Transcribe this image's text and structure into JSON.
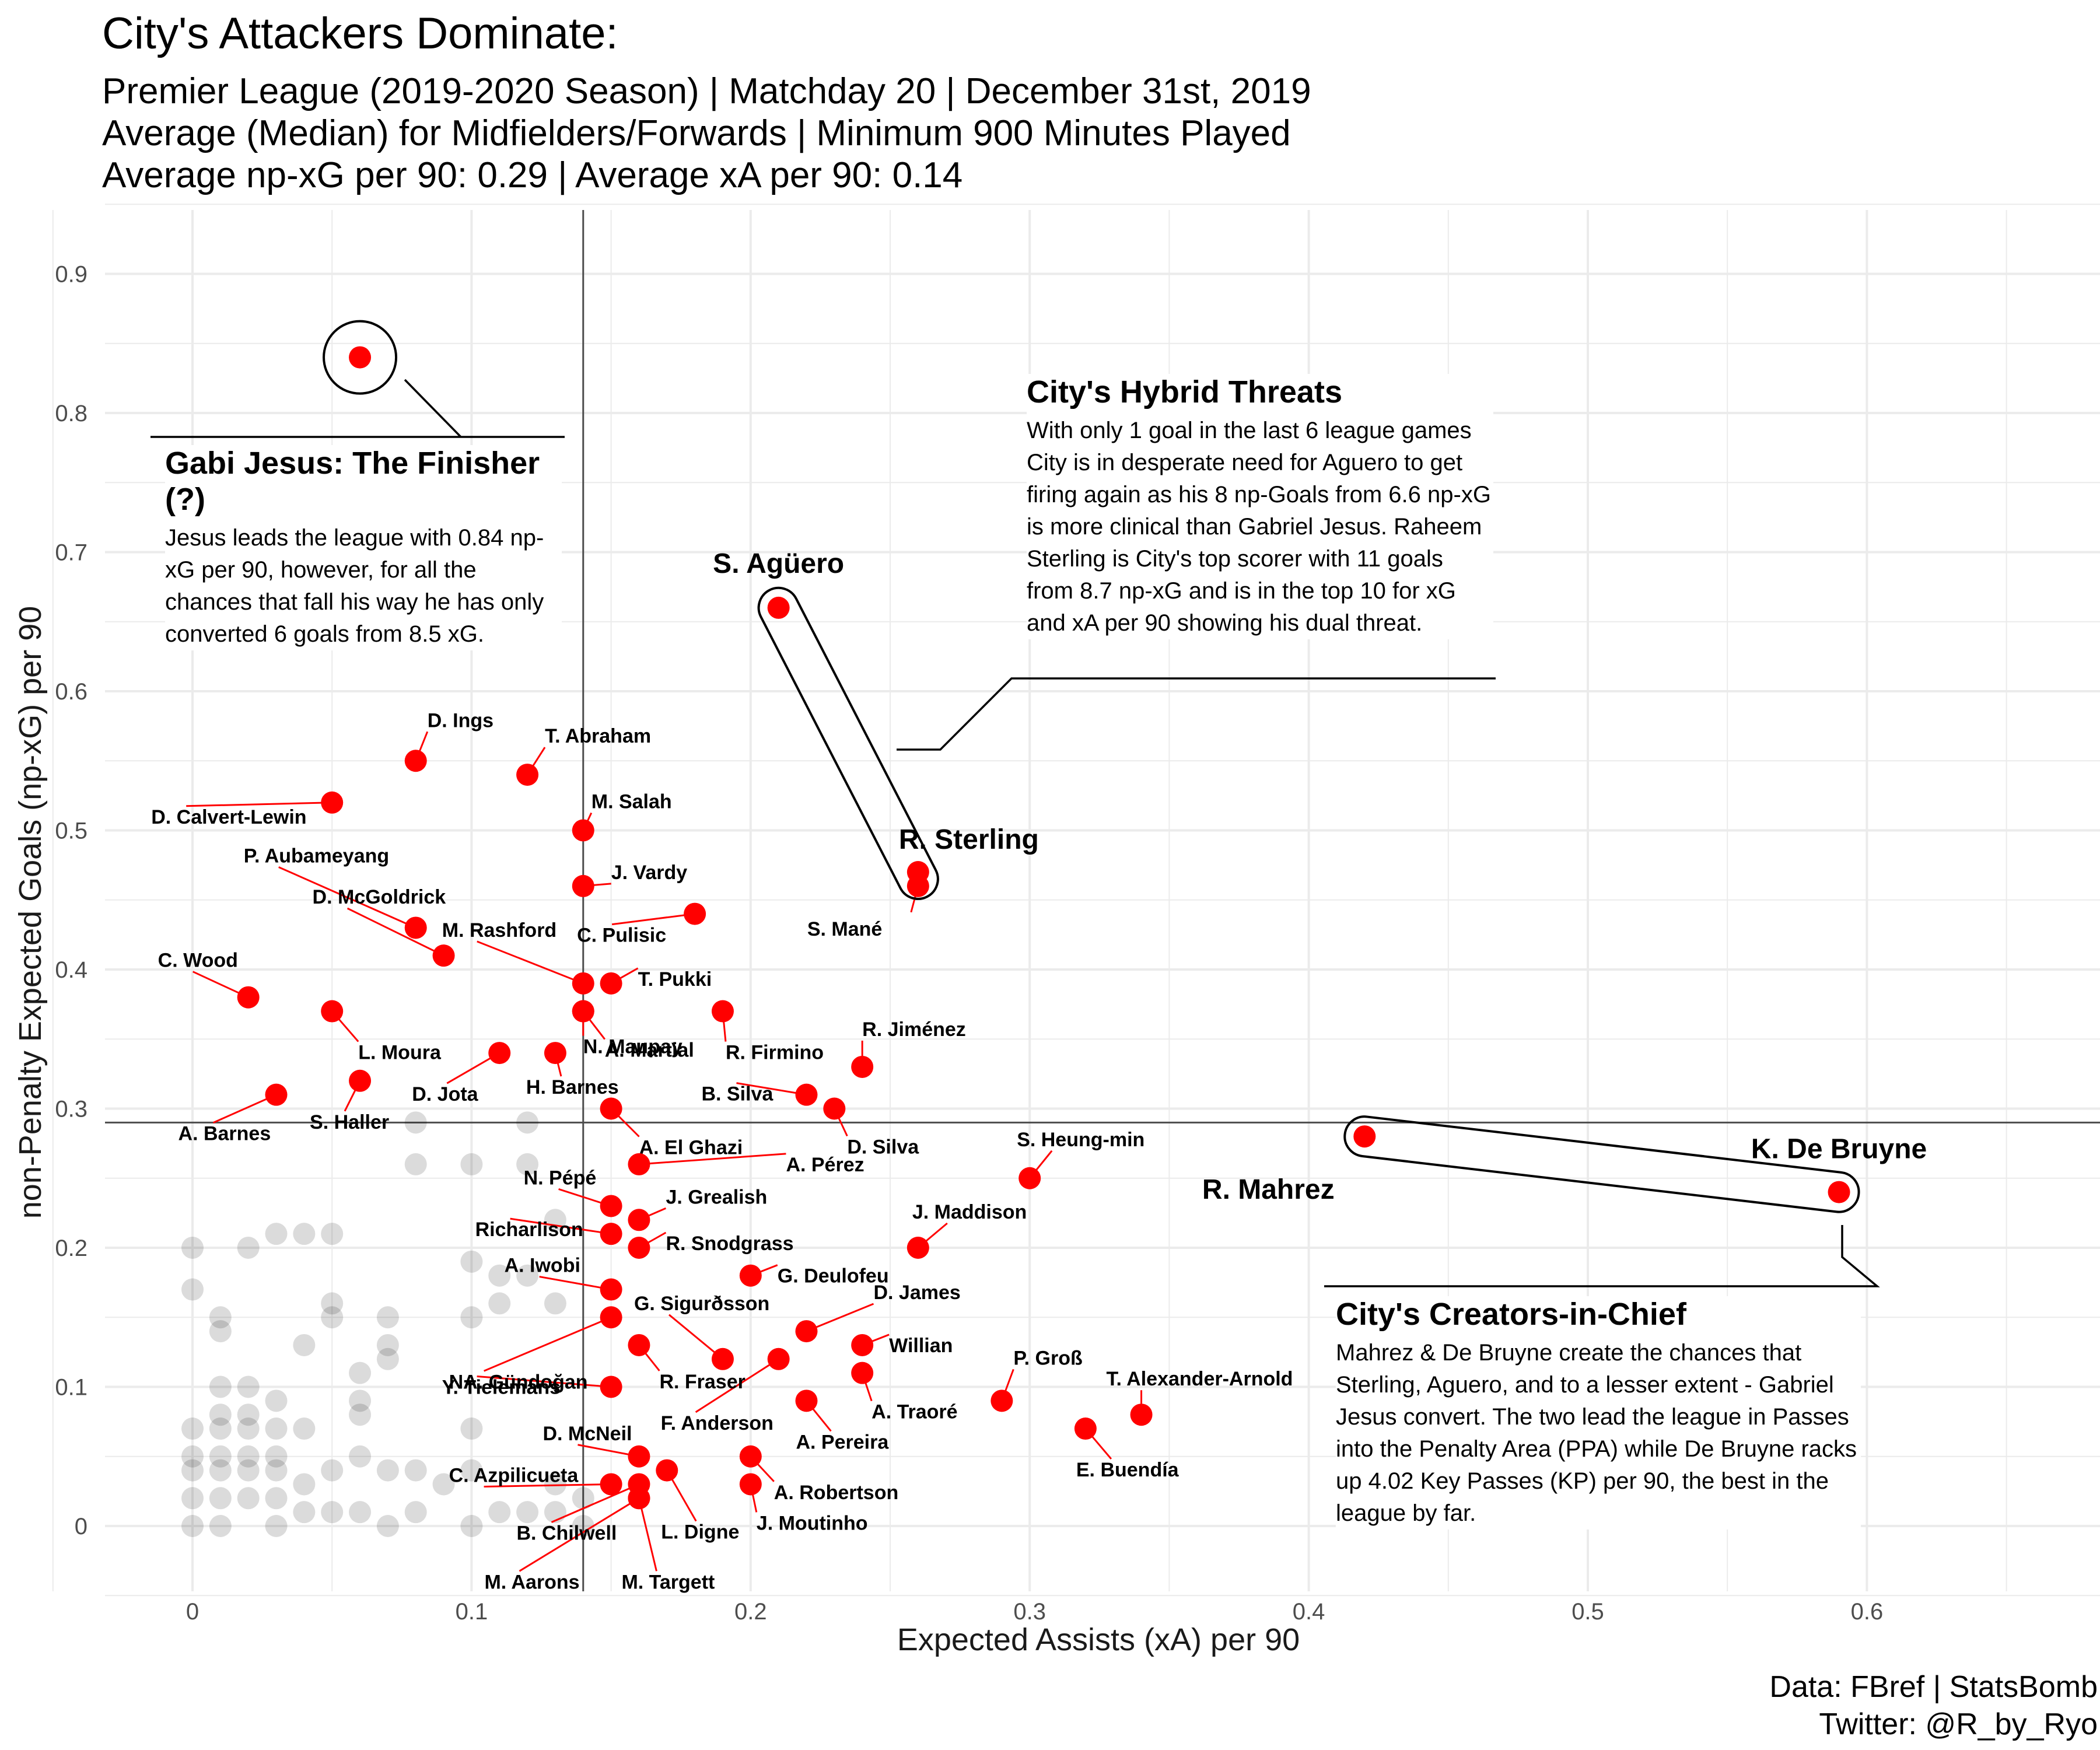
{
  "header": {
    "title": "City's Attackers Dominate:",
    "subtitle_lines": [
      "Premier League (2019-2020 Season) | Matchday 20 | December 31st, 2019",
      "Average (Median) for Midfielders/Forwards | Minimum 900 Minutes Played",
      "Average np-xG per 90: 0.29 | Average xA per 90: 0.14"
    ]
  },
  "caption": {
    "line1": "Data: FBref | StatsBomb",
    "line2": "Twitter: @R_by_Ryo"
  },
  "colors": {
    "highlight": "#ff0000",
    "background_points": "#000000",
    "grid": "#ebebeb",
    "reference_line": "#4d4d4d"
  },
  "annotations": [
    {
      "title": "Gabi Jesus: The Finisher (?)",
      "body": "Jesus leads the league with 0.84 np-xG per 90, however, for all the chances that fall his way he has only converted 6 goals from 8.5 xG."
    },
    {
      "title": "City's Hybrid Threats",
      "body": "With only 1 goal in the last 6 league games City is in desperate need for Aguero to get firing again as his 8 np-Goals from 6.6 np-xG is more clinical than Gabriel Jesus. Raheem Sterling is City's top scorer with 11 goals from 8.7 np-xG and is in the top 10 for xG and xA per 90 showing his dual threat."
    },
    {
      "title": "City's Creators-in-Chief",
      "body": "Mahrez & De Bruyne create the chances that Sterling, Aguero, and to a lesser extent - Gabriel Jesus convert. The two lead the league in Passes into the Penalty Area (PPA) while De Bruyne racks up 4.02 Key Passes (KP) per 90, the best in the league by far."
    }
  ],
  "chart_data": {
    "type": "scatter",
    "title": "City's Attackers Dominate:",
    "xlabel": "Expected Assists (xA) per 90",
    "ylabel": "non-Penalty Expected Goals (np-xG) per 90",
    "xlim": [
      -0.03,
      0.68
    ],
    "ylim": [
      -0.05,
      0.95
    ],
    "xticks": [
      0,
      0.1,
      0.2,
      0.3,
      0.4,
      0.5,
      0.6
    ],
    "xtick_labels": [
      "0",
      "0.1",
      "0.2",
      "0.3",
      "0.4",
      "0.5",
      "0.6"
    ],
    "yticks": [
      0,
      0.1,
      0.2,
      0.3,
      0.4,
      0.5,
      0.6,
      0.7,
      0.8,
      0.9
    ],
    "ytick_labels": [
      "0",
      "0.1",
      "0.2",
      "0.3",
      "0.4",
      "0.5",
      "0.6",
      "0.7",
      "0.8",
      "0.9"
    ],
    "grid": true,
    "reference_lines": {
      "xA_median": 0.14,
      "npxG_median": 0.29
    },
    "highlighted": [
      {
        "name": "",
        "x": 0.06,
        "y": 0.84
      },
      {
        "name": "S. Agüero",
        "x": 0.21,
        "y": 0.66
      },
      {
        "name": "R. Sterling",
        "x": 0.26,
        "y": 0.47
      },
      {
        "name": "S. Mané",
        "x": 0.26,
        "y": 0.46
      },
      {
        "name": "K. De Bruyne",
        "x": 0.59,
        "y": 0.24
      },
      {
        "name": "R. Mahrez",
        "x": 0.42,
        "y": 0.28
      },
      {
        "name": "D. Ings",
        "x": 0.08,
        "y": 0.55
      },
      {
        "name": "T. Abraham",
        "x": 0.12,
        "y": 0.54
      },
      {
        "name": "D. Calvert-Lewin",
        "x": 0.05,
        "y": 0.52
      },
      {
        "name": "M. Salah",
        "x": 0.14,
        "y": 0.5
      },
      {
        "name": "J. Vardy",
        "x": 0.14,
        "y": 0.46
      },
      {
        "name": "C. Pulisic",
        "x": 0.18,
        "y": 0.44
      },
      {
        "name": "P. Aubameyang",
        "x": 0.08,
        "y": 0.43
      },
      {
        "name": "D. McGoldrick",
        "x": 0.09,
        "y": 0.41
      },
      {
        "name": "M. Rashford",
        "x": 0.14,
        "y": 0.39
      },
      {
        "name": "T. Pukki",
        "x": 0.15,
        "y": 0.39
      },
      {
        "name": "N. Maupay",
        "x": 0.14,
        "y": 0.37
      },
      {
        "name": "C. Wood",
        "x": 0.02,
        "y": 0.38
      },
      {
        "name": "L. Moura",
        "x": 0.05,
        "y": 0.37
      },
      {
        "name": "A. Martial",
        "x": 0.14,
        "y": 0.37
      },
      {
        "name": "R. Firmino",
        "x": 0.19,
        "y": 0.37
      },
      {
        "name": "D. Jota",
        "x": 0.11,
        "y": 0.34
      },
      {
        "name": "H. Barnes",
        "x": 0.13,
        "y": 0.34
      },
      {
        "name": "R. Jiménez",
        "x": 0.24,
        "y": 0.33
      },
      {
        "name": "S. Haller",
        "x": 0.06,
        "y": 0.32
      },
      {
        "name": "A. Barnes",
        "x": 0.03,
        "y": 0.31
      },
      {
        "name": "B. Silva",
        "x": 0.22,
        "y": 0.31
      },
      {
        "name": "A. El Ghazi",
        "x": 0.15,
        "y": 0.3
      },
      {
        "name": "D. Silva",
        "x": 0.23,
        "y": 0.3
      },
      {
        "name": "A. Pérez",
        "x": 0.16,
        "y": 0.26
      },
      {
        "name": "N. Pépé",
        "x": 0.15,
        "y": 0.23
      },
      {
        "name": "S. Heung-min",
        "x": 0.3,
        "y": 0.25
      },
      {
        "name": "J. Grealish",
        "x": 0.16,
        "y": 0.22
      },
      {
        "name": "Richarlison",
        "x": 0.15,
        "y": 0.21
      },
      {
        "name": "R. Snodgrass",
        "x": 0.16,
        "y": 0.2
      },
      {
        "name": "J. Maddison",
        "x": 0.26,
        "y": 0.2
      },
      {
        "name": "G. Deulofeu",
        "x": 0.2,
        "y": 0.18
      },
      {
        "name": "A. Iwobi",
        "x": 0.15,
        "y": 0.17
      },
      {
        "name": "NA. Gündoğan",
        "x": 0.15,
        "y": 0.15
      },
      {
        "name": "G. Sigurðsson",
        "x": 0.19,
        "y": 0.12
      },
      {
        "name": "D. James",
        "x": 0.22,
        "y": 0.14
      },
      {
        "name": "Willian",
        "x": 0.24,
        "y": 0.13
      },
      {
        "name": "R. Fraser",
        "x": 0.16,
        "y": 0.13
      },
      {
        "name": "F. Anderson",
        "x": 0.21,
        "y": 0.12
      },
      {
        "name": "Y. Tielemans",
        "x": 0.15,
        "y": 0.1
      },
      {
        "name": "A. Traoré",
        "x": 0.24,
        "y": 0.11
      },
      {
        "name": "P. Groß",
        "x": 0.29,
        "y": 0.09
      },
      {
        "name": "T. Alexander-Arnold",
        "x": 0.34,
        "y": 0.08
      },
      {
        "name": "A. Pereira",
        "x": 0.22,
        "y": 0.09
      },
      {
        "name": "E. Buendía",
        "x": 0.32,
        "y": 0.07
      },
      {
        "name": "D. McNeil",
        "x": 0.16,
        "y": 0.05
      },
      {
        "name": "A. Robertson",
        "x": 0.2,
        "y": 0.05
      },
      {
        "name": "C. Azpilicueta",
        "x": 0.15,
        "y": 0.03
      },
      {
        "name": "L. Digne",
        "x": 0.17,
        "y": 0.04
      },
      {
        "name": "J. Moutinho",
        "x": 0.2,
        "y": 0.03
      },
      {
        "name": "B. Chilwell",
        "x": 0.16,
        "y": 0.03
      },
      {
        "name": "M. Aarons",
        "x": 0.16,
        "y": 0.02
      },
      {
        "name": "M. Targett",
        "x": 0.16,
        "y": 0.02
      }
    ],
    "other_players": [
      [
        0.08,
        0.29
      ],
      [
        0.12,
        0.29
      ],
      [
        0.08,
        0.26
      ],
      [
        0.1,
        0.26
      ],
      [
        0.12,
        0.26
      ],
      [
        0.13,
        0.22
      ],
      [
        0,
        0.2
      ],
      [
        0.02,
        0.2
      ],
      [
        0.03,
        0.21
      ],
      [
        0.04,
        0.21
      ],
      [
        0.05,
        0.21
      ],
      [
        0,
        0.17
      ],
      [
        0.1,
        0.19
      ],
      [
        0.11,
        0.18
      ],
      [
        0.12,
        0.18
      ],
      [
        0.13,
        0.16
      ],
      [
        0.11,
        0.16
      ],
      [
        0.05,
        0.16
      ],
      [
        0.01,
        0.15
      ],
      [
        0.01,
        0.14
      ],
      [
        0.04,
        0.13
      ],
      [
        0.05,
        0.15
      ],
      [
        0.07,
        0.15
      ],
      [
        0.07,
        0.13
      ],
      [
        0.1,
        0.15
      ],
      [
        0.06,
        0.11
      ],
      [
        0.07,
        0.12
      ],
      [
        0.01,
        0.1
      ],
      [
        0.02,
        0.1
      ],
      [
        0.03,
        0.09
      ],
      [
        0.01,
        0.08
      ],
      [
        0.02,
        0.08
      ],
      [
        0.06,
        0.09
      ],
      [
        0.06,
        0.08
      ],
      [
        0,
        0.07
      ],
      [
        0.01,
        0.07
      ],
      [
        0.02,
        0.07
      ],
      [
        0.03,
        0.07
      ],
      [
        0.04,
        0.07
      ],
      [
        0.1,
        0.07
      ],
      [
        0.06,
        0.05
      ],
      [
        0,
        0.05
      ],
      [
        0.01,
        0.05
      ],
      [
        0.02,
        0.05
      ],
      [
        0.03,
        0.05
      ],
      [
        0.05,
        0.04
      ],
      [
        0.07,
        0.04
      ],
      [
        0.08,
        0.04
      ],
      [
        0.1,
        0.04
      ],
      [
        0,
        0.04
      ],
      [
        0.01,
        0.04
      ],
      [
        0.02,
        0.04
      ],
      [
        0.03,
        0.04
      ],
      [
        0.04,
        0.03
      ],
      [
        0.09,
        0.03
      ],
      [
        0.13,
        0.03
      ],
      [
        0.14,
        0.02
      ],
      [
        0,
        0.02
      ],
      [
        0.01,
        0.02
      ],
      [
        0.02,
        0.02
      ],
      [
        0.03,
        0.02
      ],
      [
        0.05,
        0.01
      ],
      [
        0.06,
        0.01
      ],
      [
        0.08,
        0.01
      ],
      [
        0.11,
        0.01
      ],
      [
        0.12,
        0.01
      ],
      [
        0.13,
        0.01
      ],
      [
        0.04,
        0.01
      ],
      [
        0,
        0
      ],
      [
        0.01,
        0
      ],
      [
        0.03,
        0
      ],
      [
        0.07,
        0
      ],
      [
        0.1,
        0
      ],
      [
        0.14,
        0
      ]
    ]
  }
}
